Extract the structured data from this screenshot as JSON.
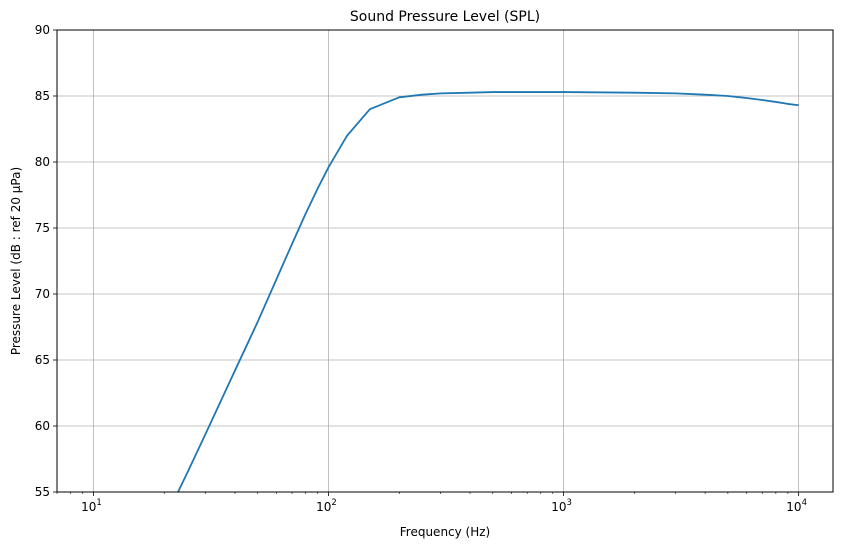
{
  "chart_data": {
    "type": "line",
    "title": "Sound Pressure Level (SPL)",
    "xlabel": "Frequency (Hz)",
    "ylabel": "Pressure Level (dB : ref 20 µPa)",
    "x_scale": "log",
    "xlim": [
      7,
      14000
    ],
    "ylim": [
      55,
      90
    ],
    "xticks": [
      {
        "value": 10,
        "base": "10",
        "exp": "1"
      },
      {
        "value": 100,
        "base": "10",
        "exp": "2"
      },
      {
        "value": 1000,
        "base": "10",
        "exp": "3"
      },
      {
        "value": 10000,
        "base": "10",
        "exp": "4"
      }
    ],
    "yticks": [
      55,
      60,
      65,
      70,
      75,
      80,
      85,
      90
    ],
    "grid": true,
    "series": [
      {
        "color": "#1f77b4",
        "x": [
          22.9,
          25,
          30,
          40,
          50,
          60,
          70,
          80,
          90,
          100,
          120,
          150,
          200,
          250,
          300,
          400,
          500,
          700,
          1000,
          2000,
          3000,
          4000,
          5000,
          6000,
          7000,
          8000,
          9000,
          10000
        ],
        "y": [
          55.0,
          56.4,
          59.4,
          64.2,
          67.9,
          71.1,
          73.8,
          76.1,
          78.0,
          79.6,
          82.0,
          84.0,
          84.9,
          85.1,
          85.2,
          85.25,
          85.3,
          85.3,
          85.3,
          85.25,
          85.2,
          85.1,
          85.0,
          84.85,
          84.7,
          84.55,
          84.4,
          84.3
        ]
      }
    ]
  }
}
